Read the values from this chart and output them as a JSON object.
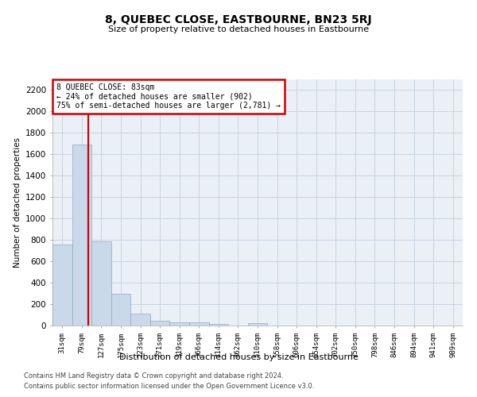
{
  "title": "8, QUEBEC CLOSE, EASTBOURNE, BN23 5RJ",
  "subtitle": "Size of property relative to detached houses in Eastbourne",
  "xlabel": "Distribution of detached houses by size in Eastbourne",
  "ylabel": "Number of detached properties",
  "footer_line1": "Contains HM Land Registry data © Crown copyright and database right 2024.",
  "footer_line2": "Contains public sector information licensed under the Open Government Licence v3.0.",
  "bar_color": "#c9d9ea",
  "bar_edge_color": "#8aaabf",
  "grid_color": "#c8d4e0",
  "bg_color": "#eaf0f6",
  "annotation_box_color": "#cc0000",
  "vline_color": "#cc0000",
  "annotation_title": "8 QUEBEC CLOSE: 83sqm",
  "annotation_line2": "← 24% of detached houses are smaller (902)",
  "annotation_line3": "75% of semi-detached houses are larger (2,781) →",
  "categories": [
    "31sqm",
    "79sqm",
    "127sqm",
    "175sqm",
    "223sqm",
    "271sqm",
    "319sqm",
    "366sqm",
    "414sqm",
    "462sqm",
    "510sqm",
    "558sqm",
    "606sqm",
    "654sqm",
    "702sqm",
    "750sqm",
    "798sqm",
    "846sqm",
    "894sqm",
    "941sqm",
    "989sqm"
  ],
  "values": [
    760,
    1690,
    790,
    300,
    110,
    45,
    32,
    28,
    18,
    0,
    20,
    0,
    0,
    0,
    0,
    0,
    0,
    0,
    0,
    0,
    0
  ],
  "ylim": [
    0,
    2300
  ],
  "yticks": [
    0,
    200,
    400,
    600,
    800,
    1000,
    1200,
    1400,
    1600,
    1800,
    2000,
    2200
  ],
  "vline_x": 1.35,
  "figsize": [
    6.0,
    5.0
  ],
  "dpi": 100
}
